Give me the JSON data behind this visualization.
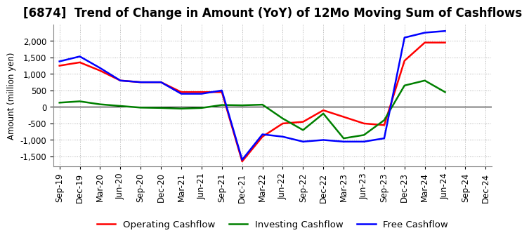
{
  "title": "[6874]  Trend of Change in Amount (YoY) of 12Mo Moving Sum of Cashflows",
  "ylabel": "Amount (million yen)",
  "x_labels": [
    "Sep-19",
    "Dec-19",
    "Mar-20",
    "Jun-20",
    "Sep-20",
    "Dec-20",
    "Mar-21",
    "Jun-21",
    "Sep-21",
    "Dec-21",
    "Mar-22",
    "Jun-22",
    "Sep-22",
    "Dec-22",
    "Mar-23",
    "Jun-23",
    "Sep-23",
    "Dec-23",
    "Mar-24",
    "Jun-24",
    "Sep-24",
    "Dec-24"
  ],
  "operating": [
    1250,
    1350,
    1100,
    800,
    750,
    750,
    450,
    450,
    450,
    -1650,
    -900,
    -500,
    -450,
    -100,
    -300,
    -500,
    -550,
    1400,
    1950,
    1950,
    null,
    null
  ],
  "investing": [
    130,
    170,
    80,
    30,
    -20,
    -30,
    -50,
    -30,
    60,
    50,
    70,
    -350,
    -700,
    -200,
    -950,
    -850,
    -400,
    650,
    800,
    450,
    null,
    null
  ],
  "free": [
    1380,
    1530,
    1180,
    800,
    750,
    750,
    400,
    400,
    500,
    -1600,
    -830,
    -900,
    -1050,
    -1000,
    -1050,
    -1050,
    -950,
    2100,
    2250,
    2300,
    null,
    null
  ],
  "operating_color": "#ff0000",
  "investing_color": "#008000",
  "free_color": "#0000ff",
  "ylim": [
    -1800,
    2500
  ],
  "yticks": [
    -1500,
    -1000,
    -500,
    0,
    500,
    1000,
    1500,
    2000
  ],
  "background_color": "#ffffff",
  "grid_color": "#b0b0b0",
  "title_fontsize": 12,
  "axis_fontsize": 8.5,
  "legend_fontsize": 9.5
}
